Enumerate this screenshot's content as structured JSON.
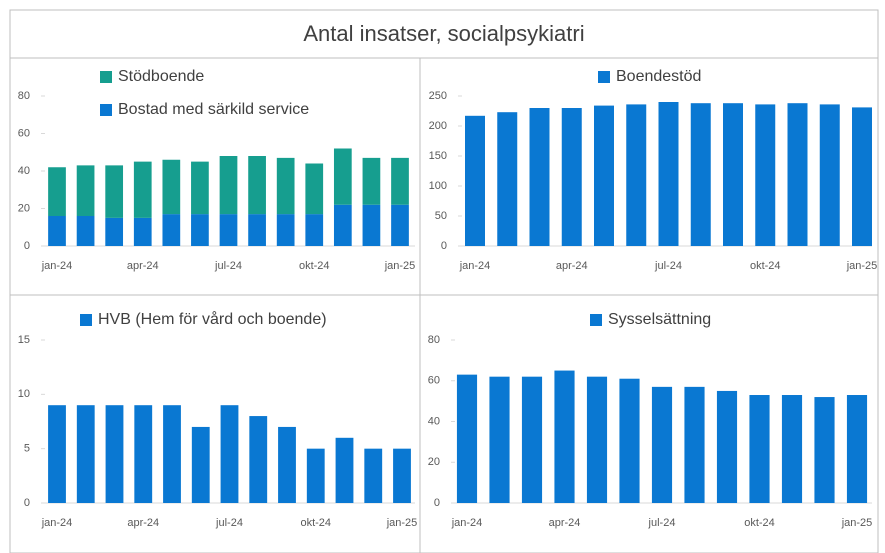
{
  "title": "Antal insatser, socialpsykiatri",
  "chart_data": [
    {
      "type": "bar",
      "stacked": true,
      "categories": [
        "jan-24",
        null,
        null,
        "apr-24",
        null,
        null,
        "jul-24",
        null,
        null,
        "okt-24",
        null,
        null,
        "jan-25"
      ],
      "series": [
        {
          "name": "Bostad med särkild service",
          "color": "#0a78d2",
          "values": [
            16,
            16,
            15,
            15,
            17,
            17,
            17,
            17,
            17,
            17,
            22,
            22,
            22
          ]
        },
        {
          "name": "Stödboende",
          "color": "#169e8f",
          "values": [
            26,
            27,
            28,
            30,
            29,
            28,
            31,
            31,
            30,
            27,
            30,
            25,
            25
          ]
        }
      ],
      "ylim": [
        0,
        80
      ],
      "yticks": [
        0,
        20,
        40,
        60,
        80
      ],
      "grid": false
    },
    {
      "type": "bar",
      "categories": [
        "jan-24",
        null,
        null,
        "apr-24",
        null,
        null,
        "jul-24",
        null,
        null,
        "okt-24",
        null,
        null,
        "jan-25"
      ],
      "series": [
        {
          "name": "Boendestöd",
          "color": "#0a78d2",
          "values": [
            217,
            223,
            230,
            230,
            234,
            236,
            240,
            238,
            238,
            236,
            238,
            236,
            231
          ]
        }
      ],
      "ylim": [
        0,
        250
      ],
      "yticks": [
        0,
        50,
        100,
        150,
        200,
        250
      ],
      "grid": false
    },
    {
      "type": "bar",
      "categories": [
        "jan-24",
        null,
        null,
        "apr-24",
        null,
        null,
        "jul-24",
        null,
        null,
        "okt-24",
        null,
        null,
        "jan-25"
      ],
      "series": [
        {
          "name": "HVB (Hem för vård och boende)",
          "color": "#0a78d2",
          "values": [
            9,
            9,
            9,
            9,
            9,
            7,
            9,
            8,
            7,
            5,
            6,
            5,
            5
          ]
        }
      ],
      "ylim": [
        0,
        15
      ],
      "yticks": [
        0,
        5,
        10,
        15
      ],
      "grid": false
    },
    {
      "type": "bar",
      "categories": [
        "jan-24",
        null,
        null,
        "apr-24",
        null,
        null,
        "jul-24",
        null,
        null,
        "okt-24",
        null,
        null,
        "jan-25"
      ],
      "series": [
        {
          "name": "Sysselsättning",
          "color": "#0a78d2",
          "values": [
            63,
            62,
            62,
            65,
            62,
            61,
            57,
            57,
            55,
            53,
            53,
            52,
            53
          ]
        }
      ],
      "ylim": [
        0,
        80
      ],
      "yticks": [
        0,
        20,
        40,
        60,
        80
      ],
      "grid": false
    }
  ]
}
